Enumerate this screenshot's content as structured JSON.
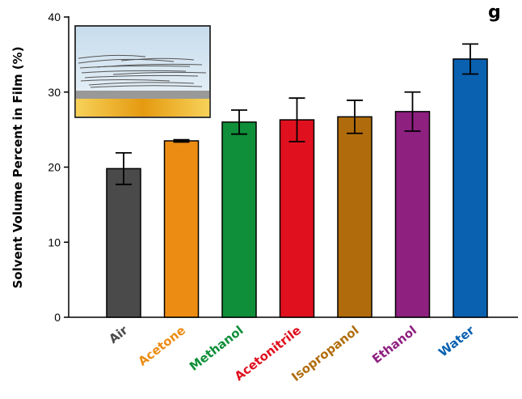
{
  "chart_data": {
    "type": "bar",
    "title_fragment": "g",
    "xlabel": "",
    "ylabel": "Solvent Volume Percent in Film (%)",
    "ylim": [
      0,
      40
    ],
    "yticks": [
      0,
      10,
      20,
      30,
      40
    ],
    "grid": false,
    "categories": [
      "Air",
      "Acetone",
      "Methanol",
      "Acetonitrile",
      "Isopropanol",
      "Ethanol",
      "Water"
    ],
    "values": [
      19.8,
      23.5,
      26.0,
      26.3,
      26.7,
      27.4,
      34.4
    ],
    "errors": [
      2.1,
      0.15,
      1.6,
      2.9,
      2.2,
      2.6,
      2.0
    ],
    "colors": [
      "#4a4a4a",
      "#ec8c12",
      "#0f8f3a",
      "#e0101e",
      "#b06c0c",
      "#8e2080",
      "#0961b0"
    ],
    "inset": "schematic of layered film on gold substrate"
  }
}
